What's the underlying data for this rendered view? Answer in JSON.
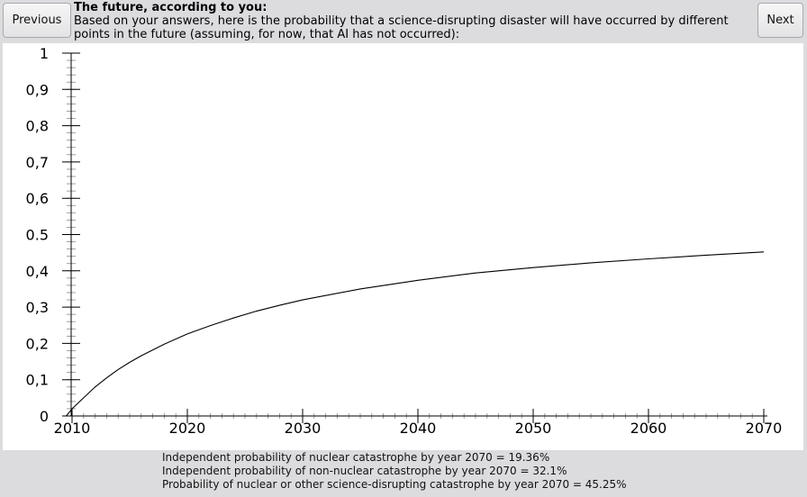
{
  "nav": {
    "previous_label": "Previous",
    "next_label": "Next"
  },
  "header": {
    "title": "The future, according to you:",
    "description": "Based on your answers, here is the probability that a science-disrupting disaster will have occurred by different points in the future (assuming, for now, that AI has not occurred):"
  },
  "chart_data": {
    "type": "line",
    "title": "",
    "xlabel": "",
    "ylabel": "",
    "xlim": [
      2010,
      2070
    ],
    "ylim": [
      0,
      1
    ],
    "grid": false,
    "x_ticks": [
      "2010",
      "2020",
      "2030",
      "2040",
      "2050",
      "2060",
      "2070"
    ],
    "y_ticks": [
      "0",
      "0,1",
      "0,2",
      "0,3",
      "0,4",
      "0.5",
      "0,6",
      "0,7",
      "0,8",
      "0,9",
      "1"
    ],
    "series": [
      {
        "x": [
          2009.5,
          2010,
          2011,
          2012,
          2013,
          2014,
          2015,
          2016,
          2018,
          2020,
          2022,
          2024,
          2026,
          2028,
          2030,
          2035,
          2040,
          2045,
          2050,
          2055,
          2060,
          2065,
          2070
        ],
        "y": [
          0.0,
          0.02,
          0.05,
          0.08,
          0.105,
          0.128,
          0.148,
          0.166,
          0.198,
          0.226,
          0.249,
          0.27,
          0.289,
          0.305,
          0.32,
          0.35,
          0.374,
          0.394,
          0.409,
          0.422,
          0.433,
          0.443,
          0.452
        ]
      }
    ]
  },
  "footer": {
    "line1": "Independent probability of nuclear catastrophe by year 2070 = 19.36%",
    "line2": "Independent probability of non-nuclear catastrophe by year 2070 = 32.1%",
    "line3": "Probability of nuclear or other science-disrupting catastrophe by year 2070 = 45.25%"
  }
}
